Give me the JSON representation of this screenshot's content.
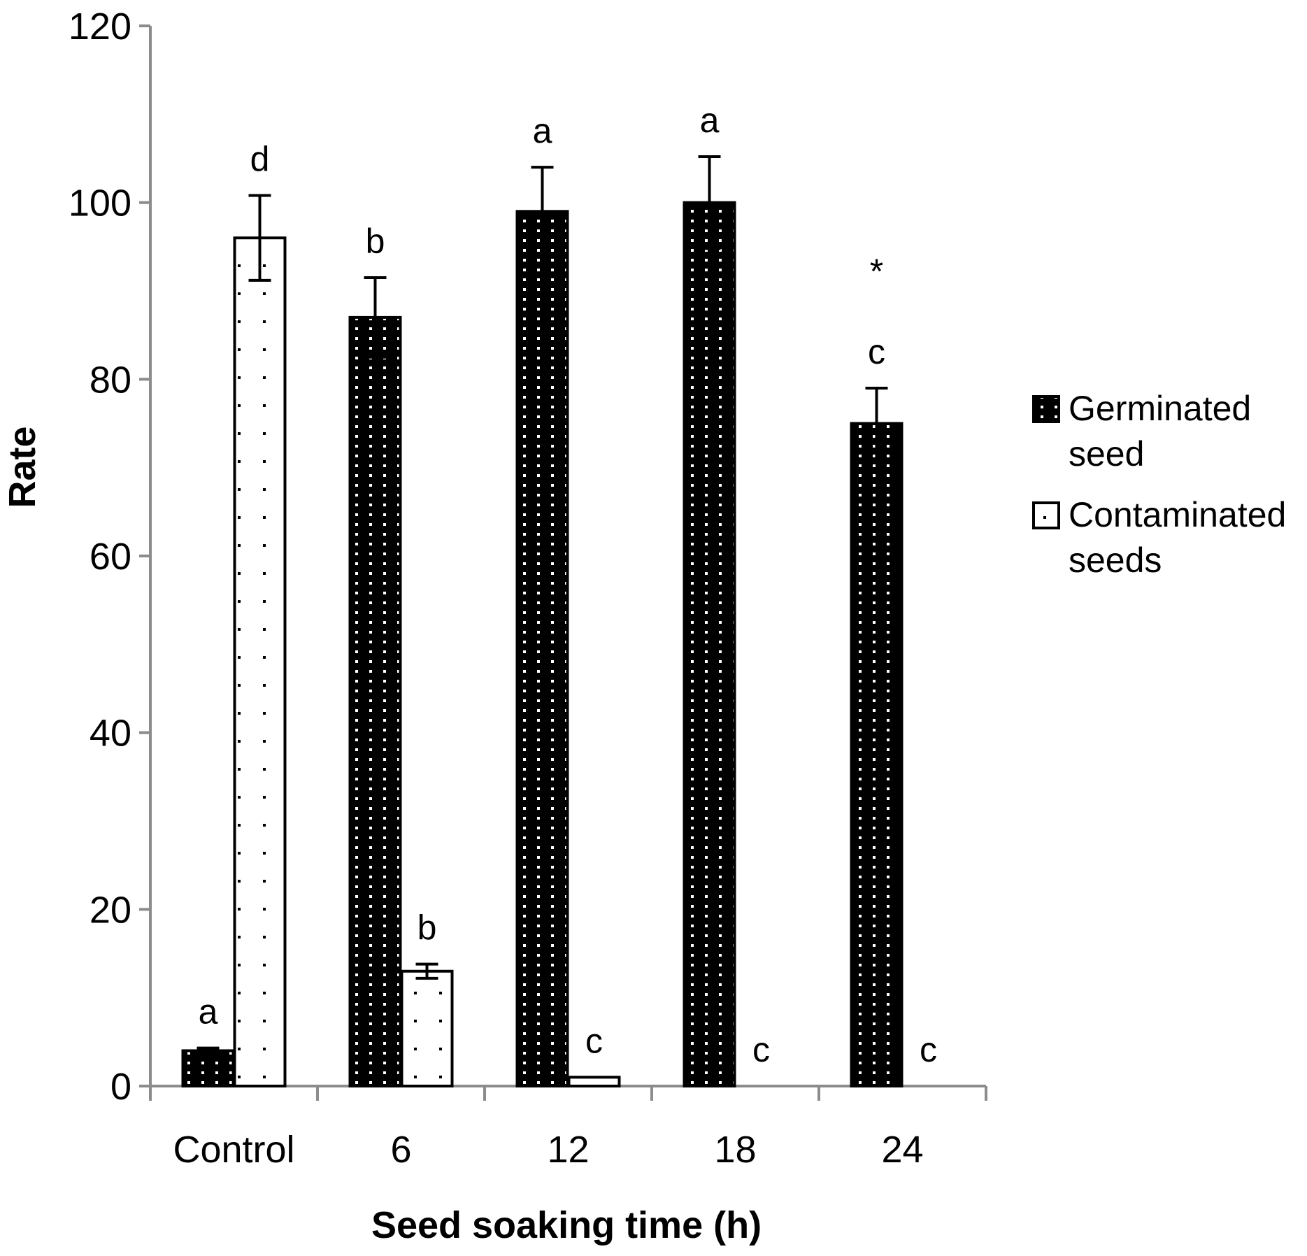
{
  "chart_data": {
    "type": "bar",
    "title": "",
    "xlabel": "Seed soaking time (h)",
    "ylabel": "Rate",
    "ylim": [
      0,
      120
    ],
    "yticks": [
      0,
      20,
      40,
      60,
      80,
      100,
      120
    ],
    "categories": [
      "Control",
      "6",
      "12",
      "18",
      "24"
    ],
    "series": [
      {
        "name": "Germinated seed",
        "legend_lines": [
          "Germinated",
          "seed"
        ],
        "fill": "#000000",
        "dot_color": "#ffffff",
        "values": [
          4,
          87,
          99,
          100,
          75
        ],
        "errors": [
          0.3,
          4.5,
          5,
          5.2,
          4
        ],
        "labels": [
          "a",
          "b",
          "a",
          "a",
          "c"
        ]
      },
      {
        "name": "Contaminated seeds",
        "legend_lines": [
          "Contaminated",
          "seeds"
        ],
        "fill": "#ffffff",
        "dot_color": "#000000",
        "values": [
          96,
          13,
          1,
          0,
          0
        ],
        "errors": [
          4.8,
          0.8,
          0,
          0,
          0
        ],
        "labels": [
          "d",
          "b",
          "c",
          "c",
          "c"
        ]
      }
    ],
    "annotations": [
      {
        "category": "24",
        "series": "Germinated seed",
        "text": "*"
      }
    ],
    "grid": false,
    "legend_position": "right"
  }
}
